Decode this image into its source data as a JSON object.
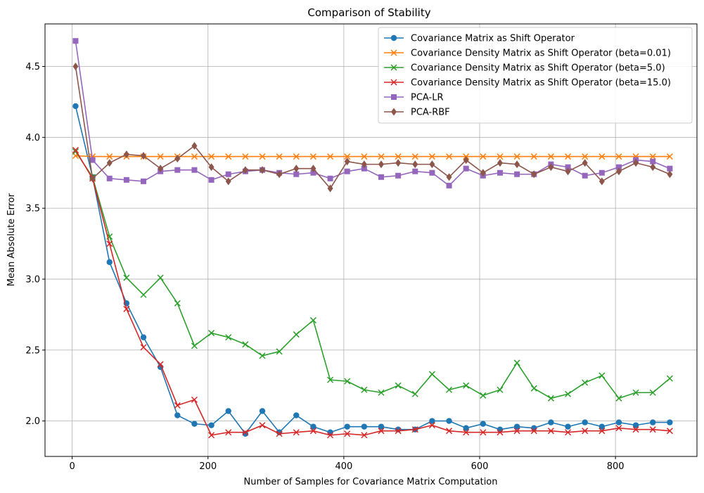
{
  "chart_data": {
    "type": "line",
    "title": "Comparison of Stability",
    "xlabel": "Number of Samples for Covariance Matrix Computation",
    "ylabel": "Mean Absolute Error",
    "xlim": [
      -40,
      920
    ],
    "ylim": [
      1.75,
      4.8
    ],
    "xticks": [
      0,
      200,
      400,
      600,
      800
    ],
    "yticks": [
      2.0,
      2.5,
      3.0,
      3.5,
      4.0,
      4.5
    ],
    "grid": true,
    "legend_position": "top-right",
    "x": [
      5,
      30,
      55,
      80,
      105,
      130,
      155,
      180,
      205,
      230,
      255,
      280,
      305,
      330,
      355,
      380,
      405,
      430,
      455,
      480,
      505,
      530,
      555,
      580,
      605,
      630,
      655,
      680,
      705,
      730,
      755,
      780,
      805,
      830,
      855,
      880
    ],
    "series": [
      {
        "name": "Covariance Matrix as Shift Operator",
        "color": "#1f77b4",
        "marker": "circle",
        "values": [
          4.22,
          3.72,
          3.12,
          2.83,
          2.59,
          2.38,
          2.04,
          1.98,
          1.97,
          2.07,
          1.91,
          2.07,
          1.92,
          2.04,
          1.96,
          1.92,
          1.96,
          1.96,
          1.96,
          1.94,
          1.94,
          2.0,
          2.0,
          1.95,
          1.98,
          1.94,
          1.96,
          1.95,
          1.99,
          1.96,
          1.99,
          1.96,
          1.99,
          1.97,
          1.99,
          1.99
        ]
      },
      {
        "name": "Covariance Density Matrix as Shift Operator (beta=0.01)",
        "color": "#ff7f0e",
        "marker": "x",
        "values": [
          3.87,
          3.865,
          3.865,
          3.865,
          3.865,
          3.865,
          3.865,
          3.865,
          3.865,
          3.865,
          3.865,
          3.865,
          3.865,
          3.865,
          3.865,
          3.865,
          3.865,
          3.865,
          3.865,
          3.865,
          3.865,
          3.865,
          3.865,
          3.865,
          3.865,
          3.865,
          3.865,
          3.865,
          3.865,
          3.865,
          3.865,
          3.865,
          3.865,
          3.865,
          3.865,
          3.865
        ]
      },
      {
        "name": "Covariance Density Matrix as Shift Operator (beta=5.0)",
        "color": "#2ca02c",
        "marker": "x",
        "values": [
          3.9,
          3.72,
          3.3,
          3.01,
          2.89,
          3.01,
          2.83,
          2.53,
          2.62,
          2.59,
          2.54,
          2.46,
          2.49,
          2.61,
          2.71,
          2.29,
          2.28,
          2.22,
          2.2,
          2.25,
          2.19,
          2.33,
          2.22,
          2.25,
          2.18,
          2.22,
          2.41,
          2.23,
          2.16,
          2.19,
          2.27,
          2.32,
          2.16,
          2.2,
          2.2,
          2.3
        ]
      },
      {
        "name": "Covariance Density Matrix as Shift Operator (beta=15.0)",
        "color": "#d62728",
        "marker": "x",
        "values": [
          3.91,
          3.71,
          3.25,
          2.79,
          2.52,
          2.4,
          2.11,
          2.15,
          1.9,
          1.92,
          1.92,
          1.97,
          1.91,
          1.92,
          1.93,
          1.9,
          1.91,
          1.9,
          1.93,
          1.93,
          1.94,
          1.97,
          1.93,
          1.92,
          1.92,
          1.92,
          1.93,
          1.93,
          1.93,
          1.92,
          1.93,
          1.93,
          1.95,
          1.94,
          1.94,
          1.93
        ]
      },
      {
        "name": "PCA-LR",
        "color": "#9467bd",
        "marker": "square",
        "values": [
          4.68,
          3.84,
          3.71,
          3.7,
          3.69,
          3.76,
          3.77,
          3.77,
          3.7,
          3.74,
          3.76,
          3.77,
          3.75,
          3.74,
          3.75,
          3.71,
          3.76,
          3.78,
          3.72,
          3.73,
          3.76,
          3.75,
          3.66,
          3.78,
          3.73,
          3.75,
          3.74,
          3.74,
          3.81,
          3.79,
          3.73,
          3.75,
          3.79,
          3.84,
          3.83,
          3.78
        ]
      },
      {
        "name": "PCA-RBF",
        "color": "#8c564b",
        "marker": "diamond",
        "values": [
          4.5,
          3.71,
          3.82,
          3.88,
          3.87,
          3.78,
          3.85,
          3.94,
          3.79,
          3.69,
          3.77,
          3.77,
          3.74,
          3.78,
          3.78,
          3.64,
          3.83,
          3.81,
          3.81,
          3.82,
          3.81,
          3.81,
          3.72,
          3.84,
          3.75,
          3.82,
          3.81,
          3.74,
          3.79,
          3.76,
          3.82,
          3.69,
          3.76,
          3.82,
          3.79,
          3.74
        ]
      }
    ]
  }
}
